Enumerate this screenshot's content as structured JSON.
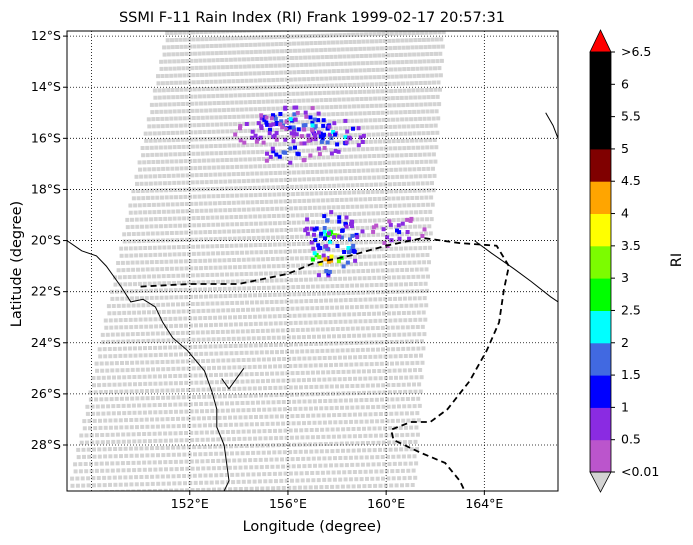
{
  "title": "SSMI F-11 Rain Index (RI) Frank 1999-02-17 20:57:31",
  "xlabel": "Longitude (degree)",
  "ylabel": "Latitude (degree)",
  "colorbar": {
    "label": "RI",
    "tick_labels": [
      "<0.01",
      "0.5",
      "1",
      "1.5",
      "2",
      "2.5",
      "3",
      "3.5",
      "4",
      "4.5",
      "5",
      "5.5",
      "6",
      ">6.5"
    ],
    "colors": [
      "#bb55cc",
      "#8a2be2",
      "#0000ff",
      "#4169e1",
      "#00ffff",
      "#00ff00",
      "#7cfc00",
      "#ffff00",
      "#ffa500",
      "#800000",
      "#000000",
      "#000000",
      "#000000"
    ],
    "under_color": "#d3d3d3",
    "over_color": "#ff0000"
  },
  "chart_data": {
    "type": "heatmap",
    "title": "SSMI F-11 Rain Index (RI) Frank 1999-02-17 20:57:31",
    "xlabel": "Longitude (degree)",
    "ylabel": "Latitude (degree)",
    "xlim": [
      147.0,
      167.0
    ],
    "ylim": [
      -29.8,
      -11.8
    ],
    "x_ticks": [
      "152°E",
      "156°E",
      "160°E",
      "164°E"
    ],
    "y_ticks": [
      "12°S",
      "14°S",
      "16°S",
      "18°S",
      "20°S",
      "22°S",
      "24°S",
      "26°S",
      "28°S"
    ],
    "swath_corners": [
      [
        151.0,
        -11.8
      ],
      [
        162.2,
        -11.8
      ],
      [
        161.0,
        -29.8
      ],
      [
        147.0,
        -29.8
      ]
    ],
    "rain_cells": [
      {
        "lon": 155.6,
        "lat": -15.3,
        "ri": 2.3
      },
      {
        "lon": 156.2,
        "lat": -15.2,
        "ri": 2.6
      },
      {
        "lon": 156.9,
        "lat": -15.4,
        "ri": 2.2
      },
      {
        "lon": 158.0,
        "lat": -15.8,
        "ri": 2.7
      },
      {
        "lon": 157.6,
        "lat": -16.0,
        "ri": 2.1
      },
      {
        "lon": 155.9,
        "lat": -16.4,
        "ri": 1.8
      },
      {
        "lon": 154.8,
        "lat": -15.6,
        "ri": 1.2
      },
      {
        "lon": 157.9,
        "lat": -19.7,
        "ri": 3.4
      },
      {
        "lon": 158.0,
        "lat": -20.1,
        "ri": 3.1
      },
      {
        "lon": 157.5,
        "lat": -19.3,
        "ri": 2.4
      },
      {
        "lon": 157.5,
        "lat": -20.7,
        "ri": 4.8
      },
      {
        "lon": 160.4,
        "lat": -19.6,
        "ri": 1.2
      }
    ]
  }
}
